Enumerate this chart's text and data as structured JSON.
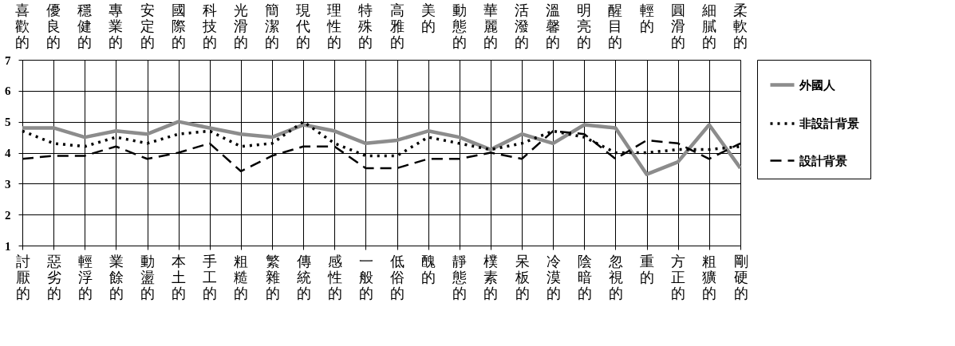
{
  "chart_data": {
    "type": "line",
    "annotations": [
      "喜歡的",
      "優良的",
      "穩健的",
      "專業的",
      "安定的",
      "國際的",
      "科技的",
      "光滑的",
      "簡潔的",
      "現代的",
      "理性的",
      "特殊的",
      "高雅的",
      "美的",
      "動態的",
      "華麗的",
      "活潑的",
      "溫馨的",
      "明亮的",
      "醒目的",
      "輕的",
      "圓滑的",
      "細膩的",
      "柔軟的"
    ],
    "categories": [
      "討厭的",
      "惡劣的",
      "輕浮的",
      "業餘的",
      "動盪的",
      "本土的",
      "手工的",
      "粗糙的",
      "繁雜的",
      "傳統的",
      "感性的",
      "一般的",
      "低俗的",
      "醜的",
      "靜態的",
      "樸素的",
      "呆板的",
      "冷漠的",
      "陰暗的",
      "忽視的",
      "重的",
      "方正的",
      "粗獷的",
      "剛硬的"
    ],
    "series": [
      {
        "name": "外國人",
        "color": "#8c8c8c",
        "line_style": "solid",
        "values": [
          4.8,
          4.8,
          4.5,
          4.7,
          4.6,
          5.0,
          4.8,
          4.6,
          4.5,
          4.9,
          4.7,
          4.3,
          4.4,
          4.7,
          4.5,
          4.1,
          4.6,
          4.3,
          4.9,
          4.8,
          3.3,
          3.7,
          4.9,
          3.5
        ]
      },
      {
        "name": "非設計背景",
        "color": "#000000",
        "line_style": "dotted",
        "values": [
          4.7,
          4.3,
          4.2,
          4.5,
          4.3,
          4.6,
          4.7,
          4.2,
          4.3,
          5.0,
          4.3,
          3.9,
          3.9,
          4.5,
          4.3,
          4.1,
          4.3,
          4.7,
          4.5,
          4.0,
          4.0,
          4.1,
          4.1,
          4.2
        ]
      },
      {
        "name": "設計背景",
        "color": "#000000",
        "line_style": "dashed",
        "values": [
          3.8,
          3.9,
          3.9,
          4.2,
          3.8,
          4.0,
          4.3,
          3.4,
          3.9,
          4.2,
          4.2,
          3.5,
          3.5,
          3.8,
          3.8,
          4.0,
          3.8,
          4.7,
          4.6,
          3.8,
          4.4,
          4.3,
          3.8,
          4.3
        ]
      }
    ],
    "ylim": [
      1,
      7
    ],
    "yticks": [
      1,
      2,
      3,
      4,
      5,
      6,
      7
    ],
    "grid": true,
    "legend": "right"
  }
}
